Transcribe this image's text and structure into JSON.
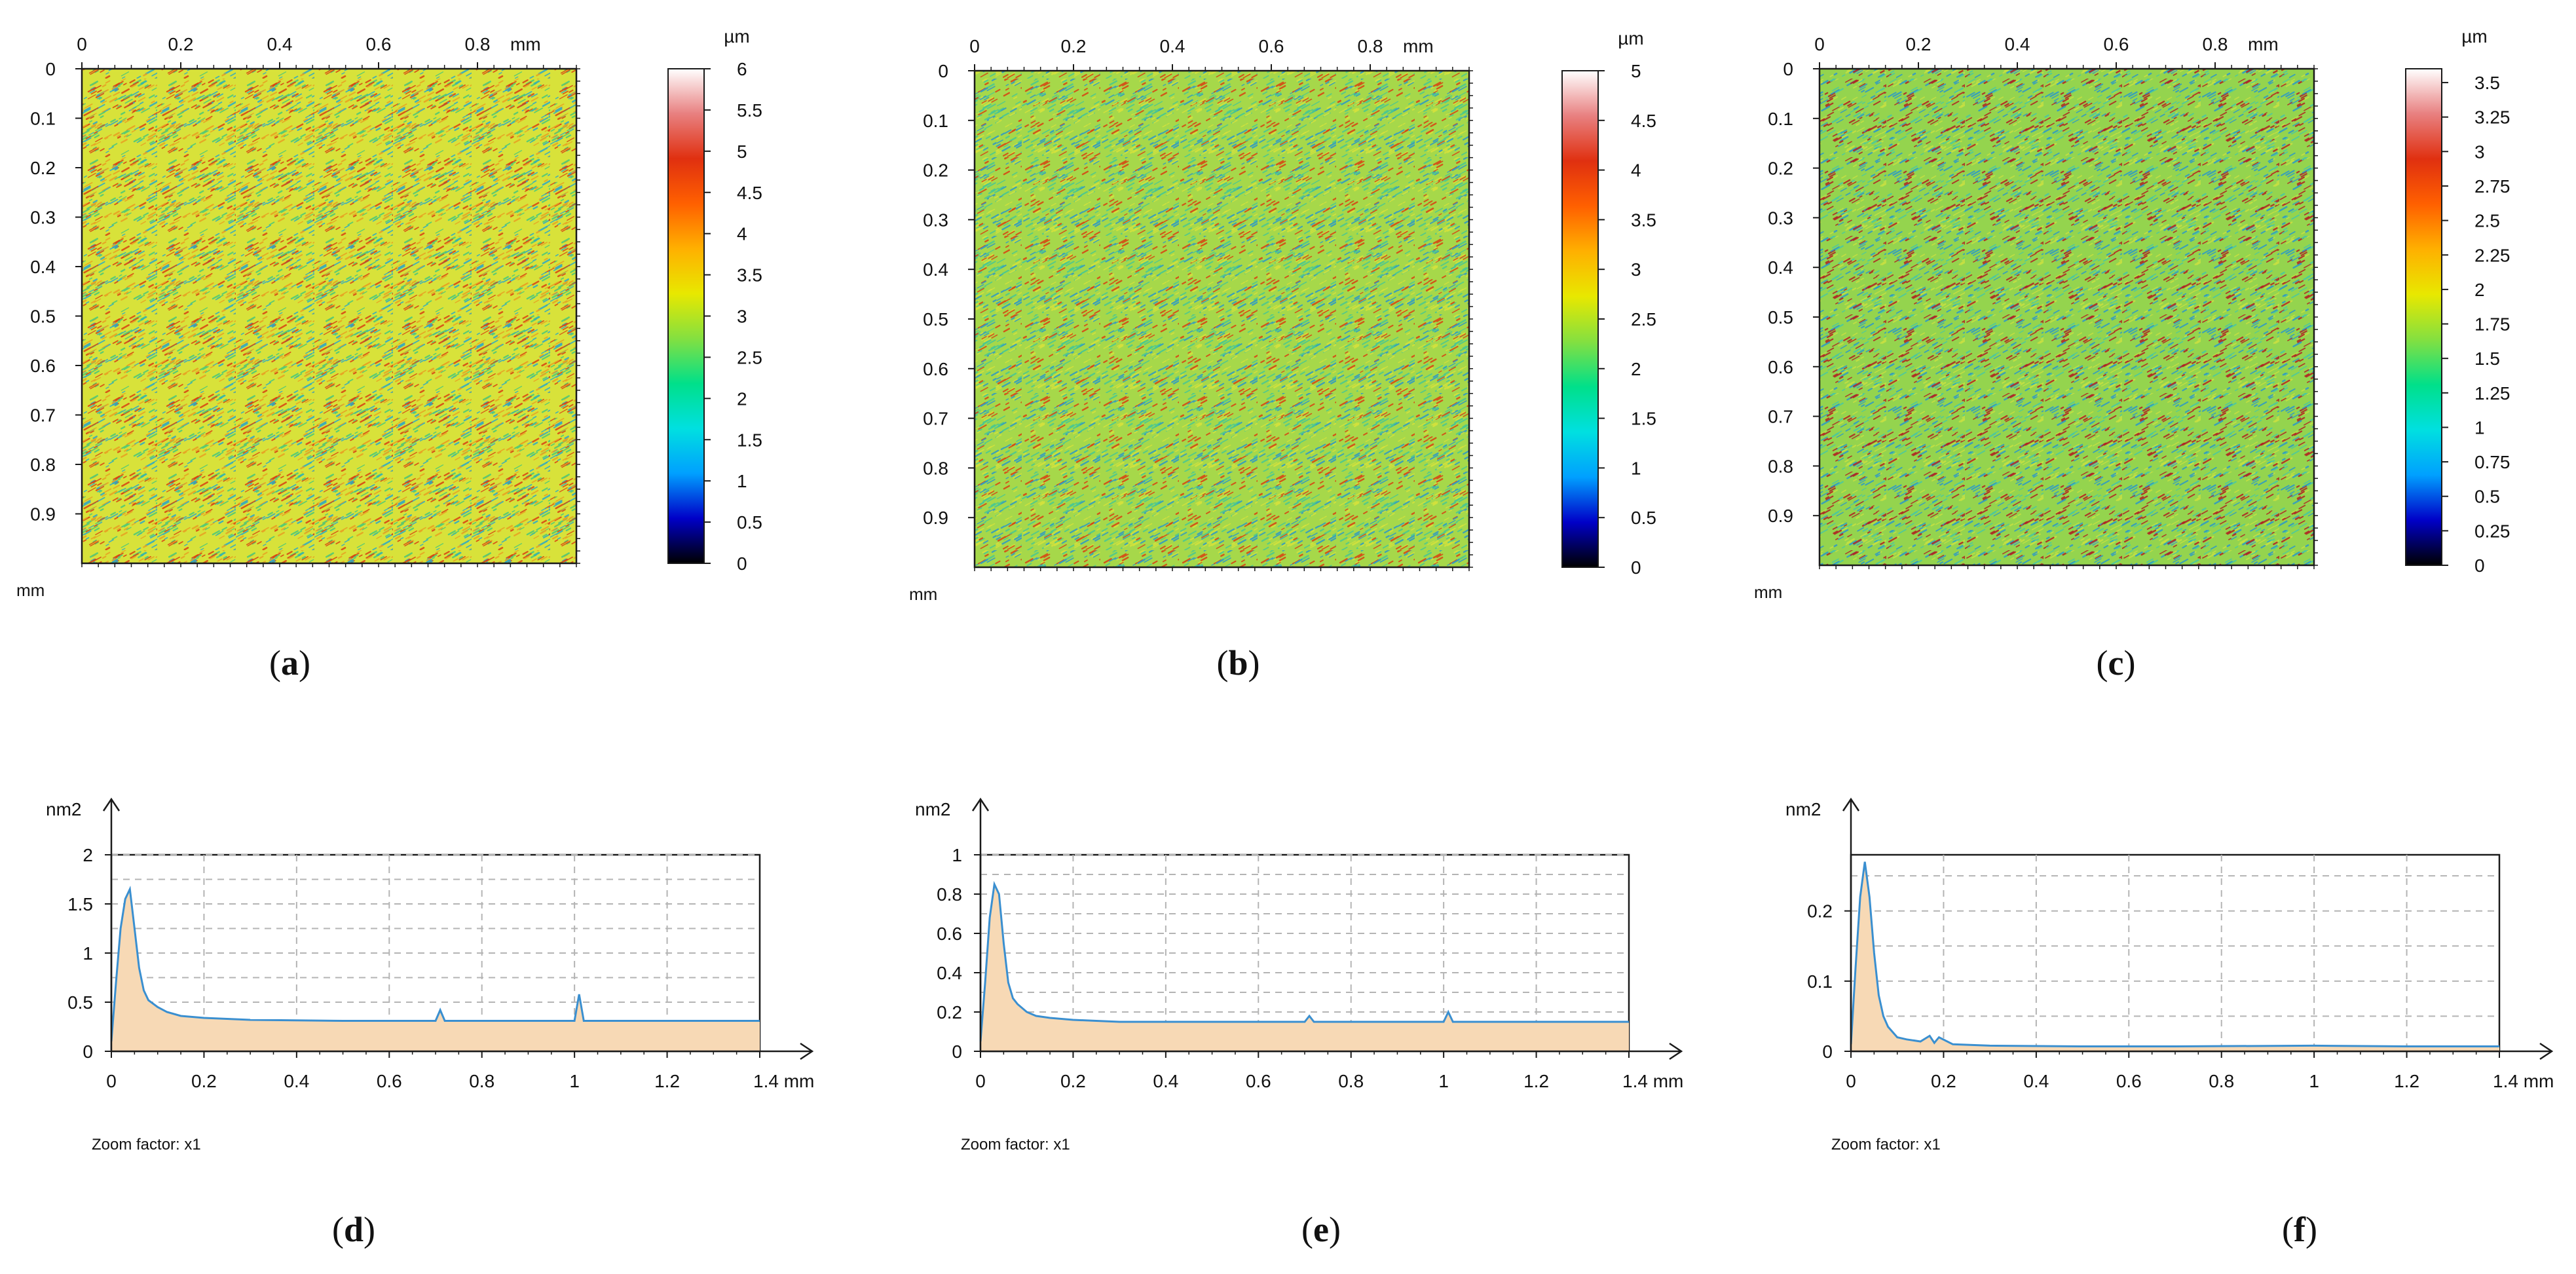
{
  "chart_data": [
    {
      "id": "a",
      "type": "heatmap",
      "caption_letter": "a",
      "x_unit": "mm",
      "y_unit": "mm",
      "colorbar_unit": "µm",
      "x_ticks": [
        "0",
        "0.2",
        "0.4",
        "0.6",
        "0.8"
      ],
      "y_ticks": [
        "0",
        "0.1",
        "0.2",
        "0.3",
        "0.4",
        "0.5",
        "0.6",
        "0.7",
        "0.8",
        "0.9"
      ],
      "colorbar_ticks": [
        "6",
        "5.5",
        "5",
        "4.5",
        "4",
        "3.5",
        "3",
        "2.5",
        "2",
        "1.5",
        "1",
        "0.5",
        "0"
      ],
      "colorbar_range": [
        0,
        6
      ],
      "surface_mean": 3.5,
      "dominant_color": "#d8e23a",
      "speckle_colors": [
        "#e8a020",
        "#d84010",
        "#48c878",
        "#2aa8c8"
      ]
    },
    {
      "id": "b",
      "type": "heatmap",
      "caption_letter": "b",
      "x_unit": "mm",
      "y_unit": "mm",
      "colorbar_unit": "µm",
      "x_ticks": [
        "0",
        "0.2",
        "0.4",
        "0.6",
        "0.8"
      ],
      "y_ticks": [
        "0",
        "0.1",
        "0.2",
        "0.3",
        "0.4",
        "0.5",
        "0.6",
        "0.7",
        "0.8",
        "0.9"
      ],
      "colorbar_ticks": [
        "5",
        "4.5",
        "4",
        "3.5",
        "3",
        "2.5",
        "2",
        "1.5",
        "1",
        "0.5",
        "0"
      ],
      "colorbar_range": [
        0,
        5
      ],
      "surface_mean": 2.5,
      "dominant_color": "#a6d84a",
      "speckle_colors": [
        "#d6e23a",
        "#48c890",
        "#2a98c8",
        "#d84010"
      ]
    },
    {
      "id": "c",
      "type": "heatmap",
      "caption_letter": "c",
      "x_unit": "mm",
      "y_unit": "mm",
      "colorbar_unit": "µm",
      "x_ticks": [
        "0",
        "0.2",
        "0.4",
        "0.6",
        "0.8"
      ],
      "y_ticks": [
        "0",
        "0.1",
        "0.2",
        "0.3",
        "0.4",
        "0.5",
        "0.6",
        "0.7",
        "0.8",
        "0.9"
      ],
      "colorbar_ticks": [
        "3.5",
        "3.25",
        "3",
        "2.75",
        "2.5",
        "2.25",
        "2",
        "1.75",
        "1.5",
        "1.25",
        "1",
        "0.75",
        "0.5",
        "0.25",
        "0"
      ],
      "colorbar_range": [
        0,
        3.6
      ],
      "surface_mean": 1.8,
      "dominant_color": "#94d44e",
      "speckle_colors": [
        "#c8e040",
        "#48c8a0",
        "#2a98c8",
        "#b02020"
      ]
    },
    {
      "id": "d",
      "type": "area",
      "caption_letter": "d",
      "y_unit": "nm2",
      "x_unit": "mm",
      "x_ticks": [
        "0",
        "0.2",
        "0.4",
        "0.6",
        "0.8",
        "1",
        "1.2",
        "1.4 mm"
      ],
      "y_ticks": [
        "0",
        "0.5",
        "1",
        "1.5",
        "2"
      ],
      "ylim": [
        0,
        2
      ],
      "xlim": [
        0,
        1.4
      ],
      "zoom_label": "Zoom factor: x1",
      "x": [
        0,
        0.01,
        0.02,
        0.03,
        0.04,
        0.05,
        0.06,
        0.07,
        0.08,
        0.1,
        0.12,
        0.15,
        0.2,
        0.25,
        0.3,
        0.5,
        0.7,
        0.71,
        0.72,
        0.9,
        1.0,
        1.01,
        1.02,
        1.2,
        1.4
      ],
      "values": [
        0.1,
        0.7,
        1.25,
        1.55,
        1.65,
        1.25,
        0.85,
        0.62,
        0.52,
        0.45,
        0.4,
        0.36,
        0.34,
        0.33,
        0.32,
        0.31,
        0.31,
        0.42,
        0.31,
        0.31,
        0.31,
        0.58,
        0.31,
        0.31,
        0.31
      ]
    },
    {
      "id": "e",
      "type": "area",
      "caption_letter": "e",
      "y_unit": "nm2",
      "x_unit": "mm",
      "x_ticks": [
        "0",
        "0.2",
        "0.4",
        "0.6",
        "0.8",
        "1",
        "1.2",
        "1.4 mm"
      ],
      "y_ticks": [
        "0",
        "0.2",
        "0.4",
        "0.6",
        "0.8",
        "1"
      ],
      "ylim": [
        0,
        1
      ],
      "xlim": [
        0,
        1.4
      ],
      "zoom_label": "Zoom factor: x1",
      "x": [
        0,
        0.01,
        0.02,
        0.03,
        0.04,
        0.05,
        0.06,
        0.07,
        0.08,
        0.1,
        0.12,
        0.15,
        0.2,
        0.25,
        0.3,
        0.5,
        0.7,
        0.71,
        0.72,
        0.9,
        1.0,
        1.01,
        1.02,
        1.2,
        1.4
      ],
      "values": [
        0.05,
        0.35,
        0.68,
        0.85,
        0.8,
        0.55,
        0.35,
        0.27,
        0.24,
        0.2,
        0.18,
        0.17,
        0.16,
        0.155,
        0.15,
        0.15,
        0.15,
        0.18,
        0.15,
        0.15,
        0.15,
        0.2,
        0.15,
        0.15,
        0.15
      ]
    },
    {
      "id": "f",
      "type": "area",
      "caption_letter": "f",
      "y_unit": "nm2",
      "x_unit": "mm",
      "x_ticks": [
        "0",
        "0.2",
        "0.4",
        "0.6",
        "0.8",
        "1",
        "1.2",
        "1.4 mm"
      ],
      "y_ticks": [
        "0",
        "0.1",
        "0.2"
      ],
      "ylim": [
        0,
        0.28
      ],
      "xlim": [
        0,
        1.4
      ],
      "zoom_label": "Zoom factor: x1",
      "x": [
        0,
        0.01,
        0.02,
        0.03,
        0.04,
        0.05,
        0.06,
        0.07,
        0.08,
        0.1,
        0.12,
        0.15,
        0.17,
        0.18,
        0.19,
        0.22,
        0.3,
        0.5,
        0.7,
        1.0,
        1.2,
        1.4
      ],
      "values": [
        0.01,
        0.12,
        0.22,
        0.27,
        0.22,
        0.14,
        0.08,
        0.05,
        0.035,
        0.02,
        0.017,
        0.014,
        0.022,
        0.012,
        0.02,
        0.01,
        0.008,
        0.007,
        0.007,
        0.008,
        0.007,
        0.007
      ]
    }
  ],
  "colors": {
    "line": "#3a8fd0",
    "fill": "#f7d9b5",
    "grid": "#b4b4b4",
    "axis": "#1a1a1a",
    "colorbar_stops": [
      "#000000",
      "#0000c8",
      "#00a0ff",
      "#00e0e0",
      "#00e08a",
      "#84e040",
      "#e8e800",
      "#ffb000",
      "#ff6000",
      "#e03010",
      "#e88080",
      "#ffffff"
    ]
  }
}
